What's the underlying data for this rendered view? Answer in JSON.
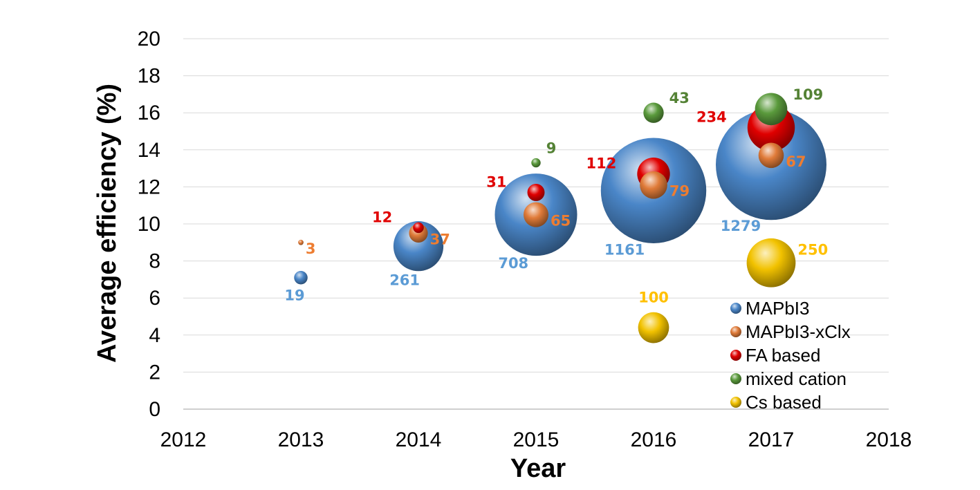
{
  "chart_data": {
    "type": "bubble",
    "title": "",
    "xlabel": "Year",
    "ylabel": "Average efficiency (%)",
    "xlim": [
      2012,
      2018
    ],
    "ylim": [
      0,
      20
    ],
    "x_ticks": [
      2012,
      2013,
      2014,
      2015,
      2016,
      2017,
      2018
    ],
    "y_ticks": [
      0,
      2,
      4,
      6,
      8,
      10,
      12,
      14,
      16,
      18,
      20
    ],
    "grid": "horizontal",
    "legend_position": "bottom-right",
    "series": [
      {
        "name": "MAPbI3",
        "color": "#4a86c8",
        "label_color": "#5b9bd5",
        "points": [
          {
            "x": 2013,
            "y": 7.1,
            "size": 19
          },
          {
            "x": 2014,
            "y": 8.8,
            "size": 261
          },
          {
            "x": 2015,
            "y": 10.5,
            "size": 708
          },
          {
            "x": 2016,
            "y": 11.8,
            "size": 1161
          },
          {
            "x": 2017,
            "y": 13.2,
            "size": 1279
          }
        ]
      },
      {
        "name": "MAPbI3-xClx",
        "color": "#e07b39",
        "label_color": "#ed7d31",
        "points": [
          {
            "x": 2013,
            "y": 9.0,
            "size": 3
          },
          {
            "x": 2014,
            "y": 9.5,
            "size": 37
          },
          {
            "x": 2015,
            "y": 10.5,
            "size": 65
          },
          {
            "x": 2016,
            "y": 12.1,
            "size": 79
          },
          {
            "x": 2017,
            "y": 13.7,
            "size": 67
          }
        ]
      },
      {
        "name": "FA based",
        "color": "#e00000",
        "label_color": "#e00000",
        "points": [
          {
            "x": 2014,
            "y": 9.8,
            "size": 12
          },
          {
            "x": 2015,
            "y": 11.7,
            "size": 31
          },
          {
            "x": 2016,
            "y": 12.7,
            "size": 112
          },
          {
            "x": 2017,
            "y": 15.2,
            "size": 234
          }
        ]
      },
      {
        "name": "mixed cation",
        "color": "#5a9a3c",
        "label_color": "#548235",
        "points": [
          {
            "x": 2015,
            "y": 13.3,
            "size": 9
          },
          {
            "x": 2016,
            "y": 16.0,
            "size": 43
          },
          {
            "x": 2017,
            "y": 16.2,
            "size": 109
          }
        ]
      },
      {
        "name": "Cs based",
        "color": "#f2c200",
        "label_color": "#ffc000",
        "points": [
          {
            "x": 2016,
            "y": 4.4,
            "size": 100
          },
          {
            "x": 2017,
            "y": 7.9,
            "size": 250
          }
        ]
      }
    ]
  }
}
